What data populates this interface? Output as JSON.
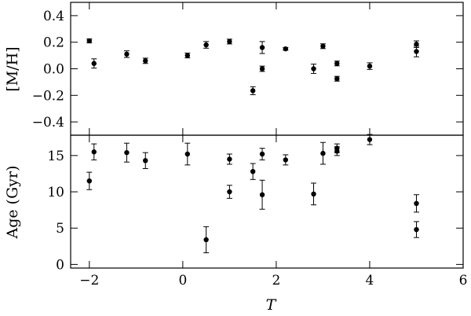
{
  "chart_data": [
    {
      "type": "scatter",
      "panel": "top",
      "ylabel": "[M/H]",
      "xlim": [
        -2.4,
        6.0
      ],
      "ylim": [
        -0.5,
        0.5
      ],
      "yticks": [
        -0.4,
        -0.2,
        0.0,
        0.2,
        0.4
      ],
      "ytick_labels": [
        "−0.4",
        "−0.2",
        "0.0",
        "0.2",
        "0.4"
      ],
      "points": [
        {
          "x": -2.0,
          "y": 0.21,
          "err": 0.015
        },
        {
          "x": -1.9,
          "y": 0.04,
          "err": 0.035
        },
        {
          "x": -1.2,
          "y": 0.11,
          "err": 0.025
        },
        {
          "x": -0.8,
          "y": 0.06,
          "err": 0.02
        },
        {
          "x": 0.1,
          "y": 0.1,
          "err": 0.018
        },
        {
          "x": 0.5,
          "y": 0.18,
          "err": 0.025
        },
        {
          "x": 1.0,
          "y": 0.205,
          "err": 0.018
        },
        {
          "x": 1.5,
          "y": -0.165,
          "err": 0.03
        },
        {
          "x": 1.7,
          "y": 0.16,
          "err": 0.045
        },
        {
          "x": 1.7,
          "y": 0.0,
          "err": 0.02
        },
        {
          "x": 2.2,
          "y": 0.15,
          "err": 0.01
        },
        {
          "x": 2.8,
          "y": 0.0,
          "err": 0.035
        },
        {
          "x": 3.0,
          "y": 0.17,
          "err": 0.018
        },
        {
          "x": 3.3,
          "y": 0.04,
          "err": 0.018
        },
        {
          "x": 3.3,
          "y": -0.075,
          "err": 0.018
        },
        {
          "x": 4.0,
          "y": 0.02,
          "err": 0.025
        },
        {
          "x": 5.0,
          "y": 0.185,
          "err": 0.025
        },
        {
          "x": 5.0,
          "y": 0.13,
          "err": 0.04
        }
      ]
    },
    {
      "type": "scatter",
      "panel": "bottom",
      "xlabel": "T",
      "ylabel": "Age (Gyr)",
      "xlim": [
        -2.4,
        6.0
      ],
      "ylim": [
        -0.5,
        17.8
      ],
      "xticks": [
        -2,
        0,
        2,
        4,
        6
      ],
      "xtick_labels": [
        "−2",
        "0",
        "2",
        "4",
        "6"
      ],
      "yticks": [
        0,
        5,
        10,
        15
      ],
      "ytick_labels": [
        "0",
        "5",
        "10",
        "15"
      ],
      "points": [
        {
          "x": -2.0,
          "y": 11.5,
          "err": 1.2
        },
        {
          "x": -1.9,
          "y": 15.5,
          "err": 1.1
        },
        {
          "x": -1.2,
          "y": 15.4,
          "err": 1.3
        },
        {
          "x": -0.8,
          "y": 14.3,
          "err": 1.1
        },
        {
          "x": 0.1,
          "y": 15.2,
          "err": 1.5
        },
        {
          "x": 0.5,
          "y": 3.4,
          "err": 1.8
        },
        {
          "x": 1.0,
          "y": 14.5,
          "err": 0.7
        },
        {
          "x": 1.0,
          "y": 10.0,
          "err": 0.9
        },
        {
          "x": 1.5,
          "y": 12.8,
          "err": 1.1
        },
        {
          "x": 1.7,
          "y": 15.2,
          "err": 0.8
        },
        {
          "x": 1.7,
          "y": 9.6,
          "err": 2.0
        },
        {
          "x": 2.2,
          "y": 14.4,
          "err": 0.7
        },
        {
          "x": 2.8,
          "y": 9.7,
          "err": 1.5
        },
        {
          "x": 3.0,
          "y": 15.3,
          "err": 1.5
        },
        {
          "x": 3.3,
          "y": 16.0,
          "err": 0.6
        },
        {
          "x": 3.3,
          "y": 15.6,
          "err": 0.6
        },
        {
          "x": 4.0,
          "y": 17.2,
          "err": 0.7
        },
        {
          "x": 5.0,
          "y": 8.4,
          "err": 1.2
        },
        {
          "x": 5.0,
          "y": 4.8,
          "err": 1.1
        }
      ]
    }
  ]
}
